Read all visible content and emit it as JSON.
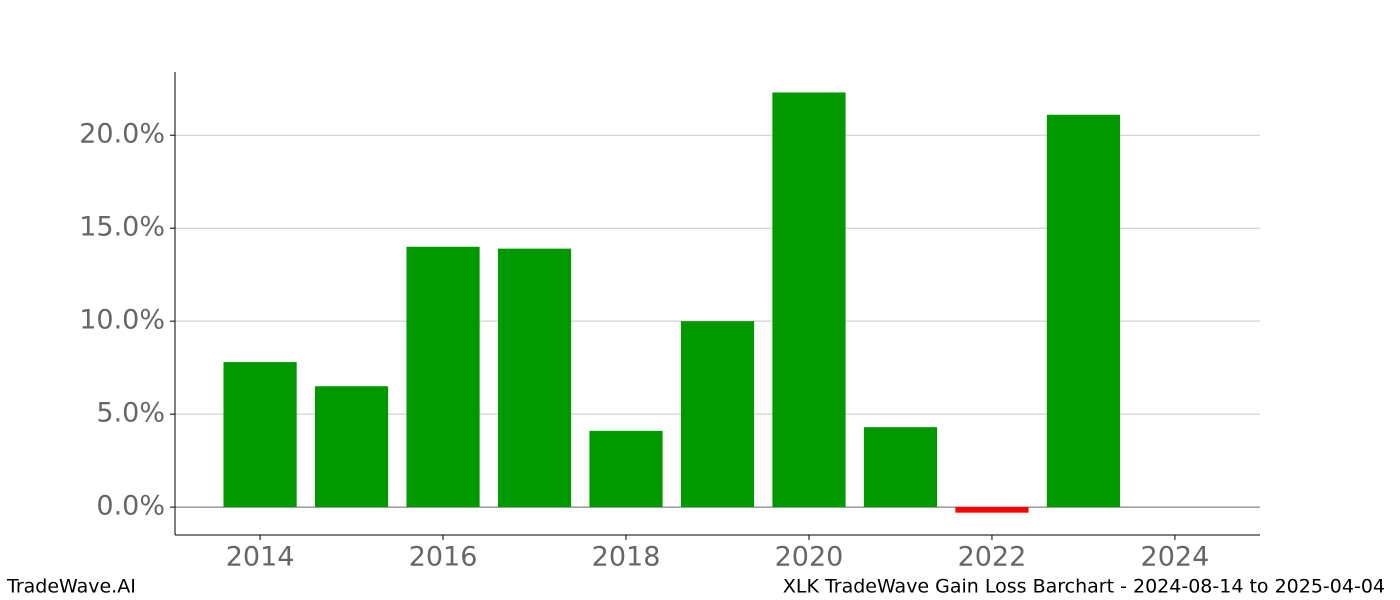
{
  "chart_data": {
    "type": "bar",
    "title": "XLK TradeWave Gain Loss Barchart - 2024-08-14 to 2025-04-04",
    "brand": "TradeWave.AI",
    "x": [
      2014,
      2015,
      2016,
      2017,
      2018,
      2019,
      2020,
      2021,
      2022,
      2023
    ],
    "values": [
      7.8,
      6.5,
      14.0,
      13.9,
      4.1,
      10.0,
      22.3,
      4.3,
      -0.3,
      21.1
    ],
    "positive_color": "#009900",
    "negative_color": "#ff0000",
    "xlim": [
      2013.07,
      2024.93
    ],
    "xticks": [
      2014,
      2016,
      2018,
      2020,
      2022,
      2024
    ],
    "ylim": [
      -1.5,
      23.4
    ],
    "yticks": [
      {
        "value": 0,
        "label": "0.0%"
      },
      {
        "value": 5,
        "label": "5.0%"
      },
      {
        "value": 10,
        "label": "10.0%"
      },
      {
        "value": 15,
        "label": "15.0%"
      },
      {
        "value": 20,
        "label": "20.0%"
      }
    ],
    "grid": true
  }
}
